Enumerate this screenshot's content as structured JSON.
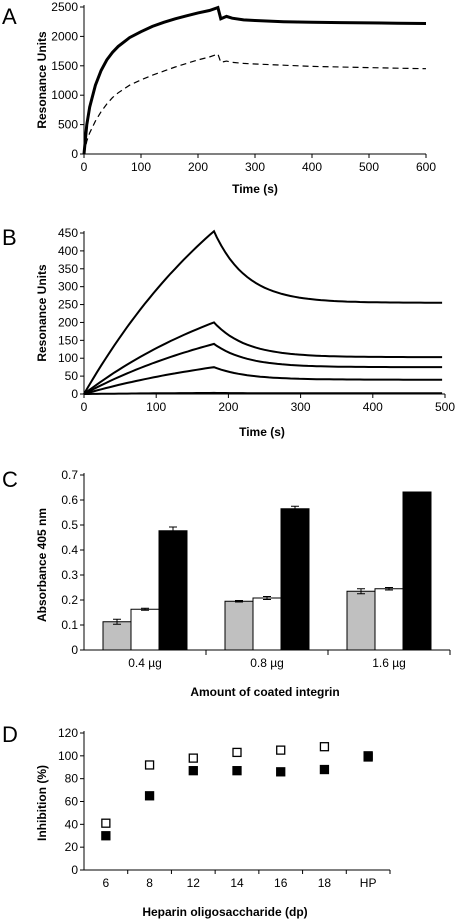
{
  "chart_data": [
    {
      "panel": "A",
      "type": "line",
      "xlabel": "Time (s)",
      "ylabel": "Resonance Units",
      "xlim": [
        0,
        600
      ],
      "ylim": [
        0,
        2500
      ],
      "xticks": [
        0,
        100,
        200,
        300,
        400,
        500,
        600
      ],
      "yticks": [
        0,
        500,
        1000,
        1500,
        2000,
        2500
      ],
      "grid": false,
      "series": [
        {
          "style": "solid-thick",
          "x": [
            0,
            5,
            10,
            20,
            30,
            40,
            50,
            60,
            80,
            100,
            120,
            140,
            160,
            180,
            200,
            220,
            235,
            240,
            250,
            260,
            280,
            300,
            350,
            400,
            450,
            500,
            550,
            600
          ],
          "values": [
            0,
            500,
            800,
            1170,
            1420,
            1600,
            1730,
            1830,
            1980,
            2080,
            2170,
            2240,
            2300,
            2350,
            2400,
            2440,
            2490,
            2300,
            2340,
            2310,
            2280,
            2270,
            2250,
            2240,
            2235,
            2230,
            2225,
            2220
          ]
        },
        {
          "style": "dashed",
          "x": [
            0,
            5,
            10,
            20,
            30,
            40,
            50,
            60,
            80,
            100,
            120,
            140,
            160,
            180,
            200,
            220,
            235,
            240,
            250,
            260,
            280,
            300,
            350,
            400,
            450,
            500,
            550,
            600
          ],
          "values": [
            0,
            220,
            360,
            560,
            720,
            850,
            960,
            1040,
            1170,
            1260,
            1340,
            1410,
            1480,
            1540,
            1600,
            1650,
            1700,
            1560,
            1580,
            1560,
            1540,
            1530,
            1510,
            1490,
            1480,
            1470,
            1460,
            1450
          ]
        }
      ]
    },
    {
      "panel": "B",
      "type": "line",
      "xlabel": "Time (s)",
      "ylabel": "Resonance Units",
      "xlim": [
        0,
        500
      ],
      "ylim": [
        0,
        450
      ],
      "xticks": [
        0,
        100,
        200,
        300,
        400,
        500
      ],
      "yticks": [
        0,
        50,
        100,
        150,
        200,
        250,
        300,
        350,
        400,
        450
      ],
      "grid": false,
      "series": [
        {
          "assoc_end_value": 455,
          "plateau_value": 255,
          "end_time": 180
        },
        {
          "assoc_end_value": 200,
          "plateau_value": 103,
          "end_time": 180
        },
        {
          "assoc_end_value": 140,
          "plateau_value": 75,
          "end_time": 180
        },
        {
          "assoc_end_value": 75,
          "plateau_value": 40,
          "end_time": 180
        },
        {
          "assoc_end_value": 3,
          "plateau_value": 2,
          "end_time": 180
        }
      ]
    },
    {
      "panel": "C",
      "type": "bar",
      "xlabel": "Amount of coated integrin",
      "ylabel": "Absorbance 405 nm",
      "categories": [
        "0.4 µg",
        "0.8 µg",
        "1.6 µg"
      ],
      "ylim": [
        0,
        0.7
      ],
      "yticks": [
        "0",
        "0.1",
        "0.2",
        "0.3",
        "0.4",
        "0.5",
        "0.6",
        "0.7"
      ],
      "grid": false,
      "series": [
        {
          "color": "#c0c0c0",
          "values": [
            0.113,
            0.195,
            0.235
          ],
          "errors": [
            0.01,
            0.003,
            0.01
          ]
        },
        {
          "color": "#ffffff",
          "values": [
            0.163,
            0.208,
            0.245
          ],
          "errors": [
            0.004,
            0.006,
            0.005
          ]
        },
        {
          "color": "#000000",
          "values": [
            0.477,
            0.565,
            0.632
          ],
          "errors": [
            0.015,
            0.01,
            0.0
          ]
        }
      ]
    },
    {
      "panel": "D",
      "type": "scatter",
      "xlabel": "Heparin oligosaccharide (dp)",
      "ylabel": "Inhibition (%)",
      "categories": [
        "6",
        "8",
        "12",
        "14",
        "16",
        "18",
        "HP"
      ],
      "ylim": [
        0,
        120
      ],
      "yticks": [
        "0",
        "20",
        "40",
        "60",
        "80",
        "100",
        "120"
      ],
      "grid": false,
      "series": [
        {
          "marker": "open-square",
          "values": [
            41,
            92,
            98,
            103,
            105,
            108,
            100
          ]
        },
        {
          "marker": "filled-square",
          "values": [
            30,
            65,
            87,
            87,
            86,
            88,
            99
          ]
        }
      ]
    }
  ]
}
